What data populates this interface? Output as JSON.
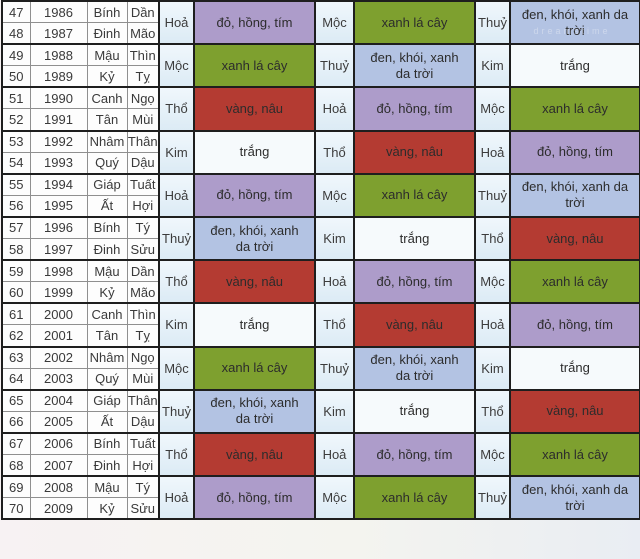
{
  "table_title": "zodiac-year-element-color-table",
  "colors": {
    "purple": {
      "label": "đỏ, hồng, tím",
      "bg": "#ad9cca"
    },
    "green": {
      "label": "xanh lá cây",
      "bg": "#7ea02f"
    },
    "red": {
      "label": "vàng, nâu",
      "bg": "#b43b32"
    },
    "blue": {
      "label": "đen, khói, xanh da trời",
      "bg": "#b3c3e3"
    },
    "white": {
      "label": "trắng",
      "bg": "#f6fafc"
    }
  },
  "watermark": "dreamstime",
  "groups": [
    {
      "rows": [
        {
          "no": "47",
          "year": "1986",
          "can": "Bính",
          "chi": "Dần"
        },
        {
          "no": "48",
          "year": "1987",
          "can": "Đinh",
          "chi": "Mão"
        }
      ],
      "cols": [
        {
          "element": "Hoả",
          "color": "purple"
        },
        {
          "element": "Mộc",
          "color": "green"
        },
        {
          "element": "Thuỷ",
          "color": "blue"
        }
      ]
    },
    {
      "rows": [
        {
          "no": "49",
          "year": "1988",
          "can": "Mậu",
          "chi": "Thìn"
        },
        {
          "no": "50",
          "year": "1989",
          "can": "Kỷ",
          "chi": "Tỵ"
        }
      ],
      "cols": [
        {
          "element": "Mộc",
          "color": "green"
        },
        {
          "element": "Thuỷ",
          "color": "blue"
        },
        {
          "element": "Kim",
          "color": "white"
        }
      ]
    },
    {
      "rows": [
        {
          "no": "51",
          "year": "1990",
          "can": "Canh",
          "chi": "Ngọ"
        },
        {
          "no": "52",
          "year": "1991",
          "can": "Tân",
          "chi": "Mùi"
        }
      ],
      "cols": [
        {
          "element": "Thổ",
          "color": "red"
        },
        {
          "element": "Hoả",
          "color": "purple"
        },
        {
          "element": "Mộc",
          "color": "green"
        }
      ]
    },
    {
      "rows": [
        {
          "no": "53",
          "year": "1992",
          "can": "Nhâm",
          "chi": "Thân"
        },
        {
          "no": "54",
          "year": "1993",
          "can": "Quý",
          "chi": "Dậu"
        }
      ],
      "cols": [
        {
          "element": "Kim",
          "color": "white"
        },
        {
          "element": "Thổ",
          "color": "red"
        },
        {
          "element": "Hoả",
          "color": "purple"
        }
      ]
    },
    {
      "rows": [
        {
          "no": "55",
          "year": "1994",
          "can": "Giáp",
          "chi": "Tuất"
        },
        {
          "no": "56",
          "year": "1995",
          "can": "Ất",
          "chi": "Hợi"
        }
      ],
      "cols": [
        {
          "element": "Hoả",
          "color": "purple"
        },
        {
          "element": "Mộc",
          "color": "green"
        },
        {
          "element": "Thuỷ",
          "color": "blue"
        }
      ]
    },
    {
      "rows": [
        {
          "no": "57",
          "year": "1996",
          "can": "Bính",
          "chi": "Tý"
        },
        {
          "no": "58",
          "year": "1997",
          "can": "Đinh",
          "chi": "Sửu"
        }
      ],
      "cols": [
        {
          "element": "Thuỷ",
          "color": "blue"
        },
        {
          "element": "Kim",
          "color": "white"
        },
        {
          "element": "Thổ",
          "color": "red"
        }
      ]
    },
    {
      "rows": [
        {
          "no": "59",
          "year": "1998",
          "can": "Mậu",
          "chi": "Dần"
        },
        {
          "no": "60",
          "year": "1999",
          "can": "Kỷ",
          "chi": "Mão"
        }
      ],
      "cols": [
        {
          "element": "Thổ",
          "color": "red"
        },
        {
          "element": "Hoả",
          "color": "purple"
        },
        {
          "element": "Mộc",
          "color": "green"
        }
      ]
    },
    {
      "rows": [
        {
          "no": "61",
          "year": "2000",
          "can": "Canh",
          "chi": "Thìn"
        },
        {
          "no": "62",
          "year": "2001",
          "can": "Tân",
          "chi": "Tỵ"
        }
      ],
      "cols": [
        {
          "element": "Kim",
          "color": "white"
        },
        {
          "element": "Thổ",
          "color": "red"
        },
        {
          "element": "Hoả",
          "color": "purple"
        }
      ]
    },
    {
      "rows": [
        {
          "no": "63",
          "year": "2002",
          "can": "Nhâm",
          "chi": "Ngọ"
        },
        {
          "no": "64",
          "year": "2003",
          "can": "Quý",
          "chi": "Mùi"
        }
      ],
      "cols": [
        {
          "element": "Mộc",
          "color": "green"
        },
        {
          "element": "Thuỷ",
          "color": "blue"
        },
        {
          "element": "Kim",
          "color": "white"
        }
      ]
    },
    {
      "rows": [
        {
          "no": "65",
          "year": "2004",
          "can": "Giáp",
          "chi": "Thân"
        },
        {
          "no": "66",
          "year": "2005",
          "can": "Ất",
          "chi": "Dậu"
        }
      ],
      "cols": [
        {
          "element": "Thuỷ",
          "color": "blue"
        },
        {
          "element": "Kim",
          "color": "white"
        },
        {
          "element": "Thổ",
          "color": "red"
        }
      ]
    },
    {
      "rows": [
        {
          "no": "67",
          "year": "2006",
          "can": "Bính",
          "chi": "Tuất"
        },
        {
          "no": "68",
          "year": "2007",
          "can": "Đinh",
          "chi": "Hợi"
        }
      ],
      "cols": [
        {
          "element": "Thổ",
          "color": "red"
        },
        {
          "element": "Hoả",
          "color": "purple"
        },
        {
          "element": "Mộc",
          "color": "green"
        }
      ]
    },
    {
      "rows": [
        {
          "no": "69",
          "year": "2008",
          "can": "Mậu",
          "chi": "Tý"
        },
        {
          "no": "70",
          "year": "2009",
          "can": "Kỷ",
          "chi": "Sửu"
        }
      ],
      "cols": [
        {
          "element": "Hoả",
          "color": "purple"
        },
        {
          "element": "Mộc",
          "color": "green"
        },
        {
          "element": "Thuỷ",
          "color": "blue"
        }
      ]
    }
  ]
}
